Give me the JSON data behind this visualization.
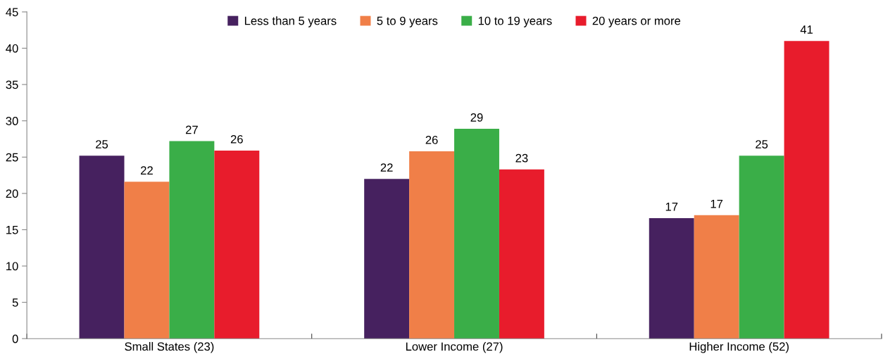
{
  "chart_data": {
    "type": "bar",
    "categories": [
      "Small States (23)",
      "Lower Income (27)",
      "Higher Income (52)"
    ],
    "series": [
      {
        "name": "Less than 5 years",
        "color": "#46215f",
        "values": [
          25.2,
          22.0,
          16.6
        ],
        "value_labels": [
          "25",
          "22",
          "17"
        ]
      },
      {
        "name": "5 to 9 years",
        "color": "#f07f48",
        "values": [
          21.6,
          25.8,
          17.0
        ],
        "value_labels": [
          "22",
          "26",
          "17"
        ]
      },
      {
        "name": "10 to 19 years",
        "color": "#3aae48",
        "values": [
          27.2,
          28.9,
          25.2
        ],
        "value_labels": [
          "27",
          "29",
          "25"
        ]
      },
      {
        "name": "20 years or more",
        "color": "#e81c2c",
        "values": [
          25.9,
          23.3,
          41.0
        ],
        "value_labels": [
          "26",
          "23",
          "41"
        ]
      }
    ],
    "ylim": [
      0,
      45
    ],
    "yticks": [
      0,
      5,
      10,
      15,
      20,
      25,
      30,
      35,
      40,
      45
    ],
    "grid": false,
    "legend": "top"
  }
}
